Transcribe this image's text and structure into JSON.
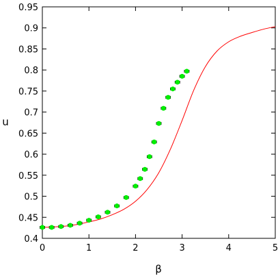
{
  "chart_data": {
    "type": "scatter",
    "xlabel": "β",
    "ylabel": "u",
    "xlim": [
      0,
      5
    ],
    "ylim": [
      0.4,
      0.95
    ],
    "x_ticks": [
      "0",
      "1",
      "2",
      "3",
      "4",
      "5"
    ],
    "y_ticks": [
      "0.4",
      "0.45",
      "0.5",
      "0.55",
      "0.6",
      "0.65",
      "0.7",
      "0.75",
      "0.8",
      "0.85",
      "0.9",
      "0.95"
    ],
    "grid": false,
    "legend": "none",
    "series": [
      {
        "kind": "points_with_errorbars",
        "color": "#00ee00",
        "points": [
          {
            "x": 0.0,
            "y": 0.426,
            "xerr": 0.05
          },
          {
            "x": 0.2,
            "y": 0.426,
            "xerr": 0.05
          },
          {
            "x": 0.4,
            "y": 0.428,
            "xerr": 0.05
          },
          {
            "x": 0.6,
            "y": 0.431,
            "xerr": 0.05
          },
          {
            "x": 0.8,
            "y": 0.436,
            "xerr": 0.05
          },
          {
            "x": 1.0,
            "y": 0.443,
            "xerr": 0.05
          },
          {
            "x": 1.2,
            "y": 0.451,
            "xerr": 0.05
          },
          {
            "x": 1.4,
            "y": 0.462,
            "xerr": 0.05
          },
          {
            "x": 1.6,
            "y": 0.477,
            "xerr": 0.05
          },
          {
            "x": 1.8,
            "y": 0.497,
            "xerr": 0.05
          },
          {
            "x": 2.0,
            "y": 0.524,
            "xerr": 0.05
          },
          {
            "x": 2.1,
            "y": 0.542,
            "xerr": 0.05
          },
          {
            "x": 2.2,
            "y": 0.564,
            "xerr": 0.05
          },
          {
            "x": 2.3,
            "y": 0.594,
            "xerr": 0.05
          },
          {
            "x": 2.4,
            "y": 0.629,
            "xerr": 0.05
          },
          {
            "x": 2.5,
            "y": 0.673,
            "xerr": 0.05
          },
          {
            "x": 2.6,
            "y": 0.709,
            "xerr": 0.05
          },
          {
            "x": 2.7,
            "y": 0.735,
            "xerr": 0.05
          },
          {
            "x": 2.8,
            "y": 0.755,
            "xerr": 0.05
          },
          {
            "x": 2.9,
            "y": 0.771,
            "xerr": 0.05
          },
          {
            "x": 3.0,
            "y": 0.785,
            "xerr": 0.05
          },
          {
            "x": 3.1,
            "y": 0.797,
            "xerr": 0.05
          }
        ]
      },
      {
        "kind": "line",
        "color": "#ff0000",
        "x": [
          0,
          0.25,
          0.5,
          0.75,
          1.0,
          1.25,
          1.5,
          1.75,
          2.0,
          2.25,
          2.5,
          2.75,
          3.0,
          3.25,
          3.5,
          3.75,
          4.0,
          4.25,
          4.5,
          4.75,
          5.0
        ],
        "y": [
          0.426,
          0.427,
          0.429,
          0.433,
          0.439,
          0.446,
          0.456,
          0.469,
          0.488,
          0.516,
          0.556,
          0.612,
          0.68,
          0.752,
          0.808,
          0.845,
          0.867,
          0.88,
          0.889,
          0.897,
          0.903
        ]
      }
    ]
  }
}
